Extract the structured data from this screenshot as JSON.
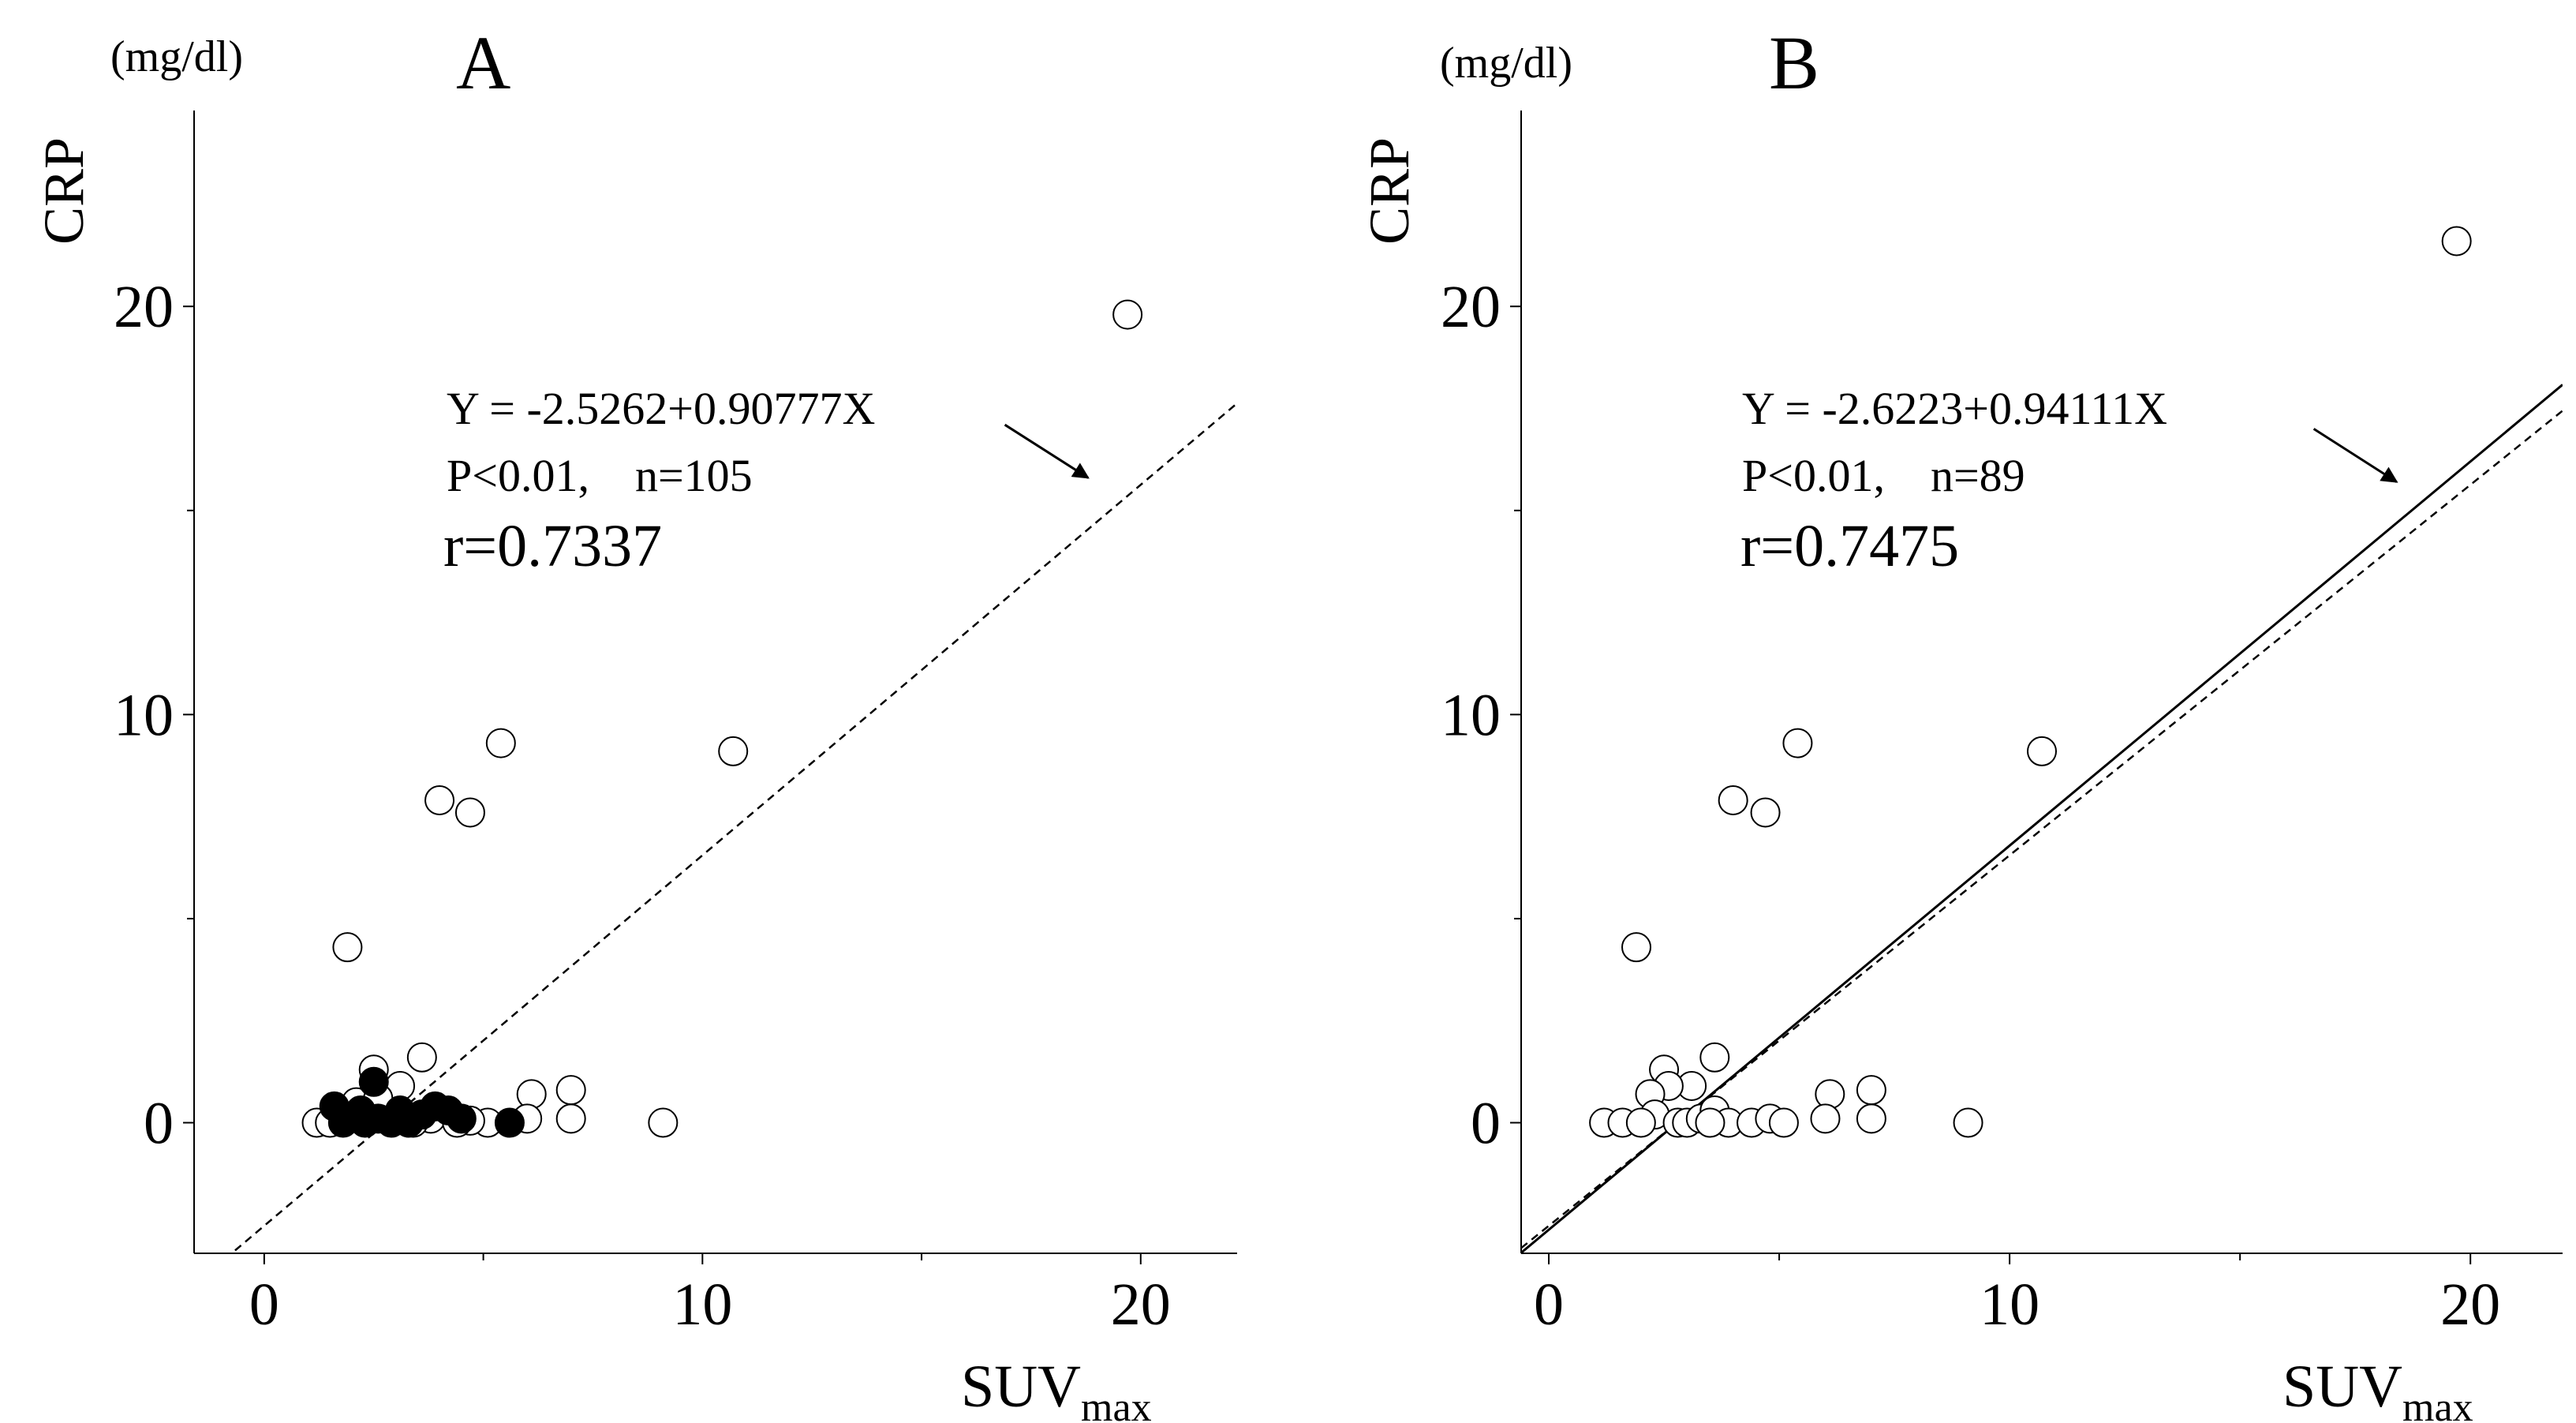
{
  "chart_data": [
    {
      "type": "scatter",
      "panel_label": "A",
      "unit_label": "(mg/dl)",
      "ylabel": "CRP",
      "xlabel": "SUV",
      "xlabel_subscript": "max",
      "xlim": [
        -1.6,
        22.2
      ],
      "ylim": [
        -3.2,
        24.8
      ],
      "xticks": [
        0,
        10,
        20
      ],
      "yticks": [
        0,
        10,
        20
      ],
      "x_minor_ticks": [
        5,
        15
      ],
      "y_minor_ticks": [
        5,
        15
      ],
      "equation": "Y = -2.5262+0.90777X",
      "stats": "P<0.01,    n=105",
      "r_text": "r=0.7337",
      "series": [
        {
          "marker": "open-circle",
          "color": "#ffffff",
          "points": [
            [
              19.7,
              19.8
            ],
            [
              10.7,
              9.1
            ],
            [
              5.4,
              9.3
            ],
            [
              4.0,
              7.9
            ],
            [
              4.7,
              7.6
            ],
            [
              1.9,
              4.3
            ],
            [
              3.6,
              1.6
            ],
            [
              2.5,
              1.3
            ],
            [
              3.1,
              0.9
            ],
            [
              7.0,
              0.8
            ],
            [
              6.1,
              0.7
            ],
            [
              7.0,
              0.1
            ],
            [
              6.0,
              0.1
            ],
            [
              9.1,
              0.0
            ],
            [
              1.2,
              0.0
            ],
            [
              5.1,
              0.0
            ],
            [
              4.7,
              0.05
            ],
            [
              2.1,
              0.5
            ],
            [
              3.8,
              0.1
            ],
            [
              4.4,
              0.0
            ],
            [
              2.6,
              0.6
            ],
            [
              1.5,
              0.0
            ],
            [
              3.4,
              0.0
            ]
          ]
        },
        {
          "marker": "filled-circle",
          "color": "#000000",
          "points": [
            [
              2.5,
              1.0
            ],
            [
              1.6,
              0.4
            ],
            [
              1.8,
              0.0
            ],
            [
              2.3,
              0.0
            ],
            [
              2.6,
              0.1
            ],
            [
              2.9,
              0.0
            ],
            [
              3.1,
              0.3
            ],
            [
              3.3,
              0.0
            ],
            [
              3.6,
              0.2
            ],
            [
              3.9,
              0.4
            ],
            [
              4.2,
              0.3
            ],
            [
              4.5,
              0.1
            ],
            [
              5.6,
              0.0
            ],
            [
              2.2,
              0.3
            ]
          ]
        }
      ],
      "lines": [
        {
          "style": "dashed",
          "intercept": -2.5262,
          "slope": 0.90777
        }
      ],
      "arrow": {
        "from": [
          16.9,
          17.1
        ],
        "to": [
          18.8,
          15.8
        ]
      }
    },
    {
      "type": "scatter",
      "panel_label": "B",
      "unit_label": "(mg/dl)",
      "ylabel": "CRP",
      "xlabel": "SUV",
      "xlabel_subscript": "max",
      "xlim": [
        -0.6,
        22.0
      ],
      "ylim": [
        -3.2,
        24.8
      ],
      "xticks": [
        0,
        10,
        20
      ],
      "yticks": [
        0,
        10,
        20
      ],
      "x_minor_ticks": [
        5,
        15
      ],
      "y_minor_ticks": [
        5,
        15
      ],
      "equation": "Y = -2.6223+0.94111X",
      "stats": "P<0.01,    n=89",
      "r_text": "r=0.7475",
      "series": [
        {
          "marker": "open-circle",
          "color": "#ffffff",
          "points": [
            [
              19.7,
              21.6
            ],
            [
              10.7,
              9.1
            ],
            [
              5.4,
              9.3
            ],
            [
              4.0,
              7.9
            ],
            [
              4.7,
              7.6
            ],
            [
              1.9,
              4.3
            ],
            [
              3.6,
              1.6
            ],
            [
              2.5,
              1.3
            ],
            [
              3.1,
              0.9
            ],
            [
              2.6,
              0.9
            ],
            [
              7.0,
              0.8
            ],
            [
              6.1,
              0.7
            ],
            [
              7.0,
              0.1
            ],
            [
              6.0,
              0.1
            ],
            [
              9.1,
              0.0
            ],
            [
              1.2,
              0.0
            ],
            [
              1.6,
              0.0
            ],
            [
              2.2,
              0.7
            ],
            [
              2.3,
              0.2
            ],
            [
              2.8,
              0.0
            ],
            [
              3.0,
              0.0
            ],
            [
              3.3,
              0.1
            ],
            [
              3.6,
              0.3
            ],
            [
              3.9,
              0.0
            ],
            [
              4.4,
              0.0
            ],
            [
              4.8,
              0.1
            ],
            [
              5.1,
              0.0
            ],
            [
              2.0,
              0.0
            ],
            [
              3.5,
              0.0
            ]
          ]
        }
      ],
      "lines": [
        {
          "style": "solid",
          "intercept": -2.6223,
          "slope": 0.94111
        },
        {
          "style": "dashed",
          "intercept": -2.5262,
          "slope": 0.90777
        }
      ],
      "arrow": {
        "from": [
          16.6,
          17.0
        ],
        "to": [
          18.4,
          15.7
        ]
      }
    }
  ]
}
